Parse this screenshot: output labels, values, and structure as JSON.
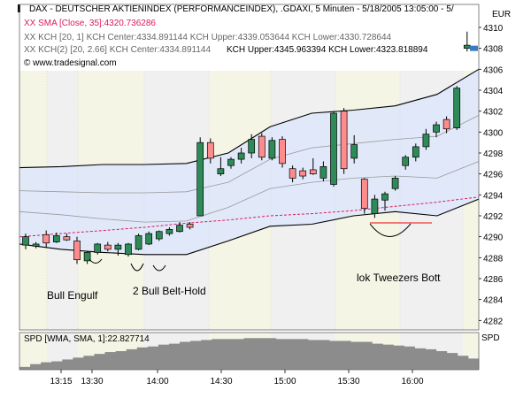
{
  "header": {
    "title": "DAX - DEUTSCHER AKTIENINDEX (PERFORMANCEINDEX), .GDAXI, 5 Minuten - 5/18/2005 13:05:00 - 5/",
    "currency": "EUR",
    "sma_label": "XX SMA [Close, 35]:4320.736286",
    "kch1_label": "XX KCH [20, 1] KCH Center:4334.891144 KCH Upper:4339.053644 KCH Lower:4330.728644",
    "kch2_label_part1": "XX KCH(2) [20, 2.66] KCH Center:4334.891144",
    "kch2_label_part2": "KCH Upper:4345.963394 KCH Lower:4323.818894",
    "copyright": "© www.tradesignal.com"
  },
  "annotations": {
    "bull_engulf": "Bull Engulf",
    "belt_hold": "2 Bull Belt-Hold",
    "tweezers": "lok Tweezers Bott"
  },
  "indicator": {
    "label": "SPD [WMA, SMA, 1]:22.827714",
    "axis_label": "SPD"
  },
  "colors": {
    "bull": "#2e8b57",
    "bear": "#ff8c8c",
    "sma": "#dd1a5a",
    "channel": "#000000",
    "band_fill": "#dde6fb",
    "volume": "#8c8c8c"
  },
  "chart_data": {
    "type": "candlestick",
    "y_ticks": [
      4282,
      4284,
      4286,
      4288,
      4290,
      4292,
      4294,
      4296,
      4298,
      4300,
      4302,
      4304,
      4306,
      4308,
      4310
    ],
    "ylim": [
      4281,
      4311
    ],
    "x_tick_labels": [
      "13:15",
      "13:30",
      "14:00",
      "14:30",
      "15:00",
      "15:30",
      "16:00"
    ],
    "current_price": 4308,
    "candles": [
      {
        "o": 4289.2,
        "h": 4290.3,
        "l": 4288.8,
        "c": 4290.0
      },
      {
        "o": 4289.1,
        "h": 4289.5,
        "l": 4288.9,
        "c": 4289.3
      },
      {
        "o": 4290.2,
        "h": 4290.6,
        "l": 4289.0,
        "c": 4289.4
      },
      {
        "o": 4289.5,
        "h": 4290.4,
        "l": 4289.4,
        "c": 4290.1
      },
      {
        "o": 4290.0,
        "h": 4290.3,
        "l": 4289.6,
        "c": 4289.7
      },
      {
        "o": 4289.6,
        "h": 4290.0,
        "l": 4287.4,
        "c": 4287.8
      },
      {
        "o": 4287.7,
        "h": 4288.6,
        "l": 4287.4,
        "c": 4288.5
      },
      {
        "o": 4288.5,
        "h": 4289.4,
        "l": 4288.3,
        "c": 4289.3
      },
      {
        "o": 4289.2,
        "h": 4289.5,
        "l": 4288.6,
        "c": 4288.8
      },
      {
        "o": 4288.8,
        "h": 4289.4,
        "l": 4288.2,
        "c": 4289.2
      },
      {
        "o": 4288.3,
        "h": 4289.4,
        "l": 4288.1,
        "c": 4289.3
      },
      {
        "o": 4288.8,
        "h": 4290.3,
        "l": 4288.7,
        "c": 4290.1
      },
      {
        "o": 4289.3,
        "h": 4290.5,
        "l": 4289.2,
        "c": 4290.3
      },
      {
        "o": 4289.8,
        "h": 4290.6,
        "l": 4289.6,
        "c": 4290.5
      },
      {
        "o": 4290.3,
        "h": 4290.9,
        "l": 4290.1,
        "c": 4290.7
      },
      {
        "o": 4290.5,
        "h": 4291.4,
        "l": 4290.4,
        "c": 4291.1
      },
      {
        "o": 4291.2,
        "h": 4291.4,
        "l": 4290.7,
        "c": 4290.9
      },
      {
        "o": 4292.0,
        "h": 4299.5,
        "l": 4292.0,
        "c": 4299.0
      },
      {
        "o": 4299.0,
        "h": 4299.4,
        "l": 4297.0,
        "c": 4297.5
      },
      {
        "o": 4296.0,
        "h": 4297.6,
        "l": 4295.8,
        "c": 4296.5
      },
      {
        "o": 4296.8,
        "h": 4297.6,
        "l": 4296.5,
        "c": 4297.4
      },
      {
        "o": 4297.4,
        "h": 4298.5,
        "l": 4297.0,
        "c": 4298.0
      },
      {
        "o": 4298.0,
        "h": 4299.8,
        "l": 4297.5,
        "c": 4299.3
      },
      {
        "o": 4299.6,
        "h": 4299.9,
        "l": 4297.3,
        "c": 4297.6
      },
      {
        "o": 4297.5,
        "h": 4299.5,
        "l": 4297.3,
        "c": 4299.2
      },
      {
        "o": 4299.3,
        "h": 4299.6,
        "l": 4296.6,
        "c": 4297.0
      },
      {
        "o": 4296.5,
        "h": 4296.8,
        "l": 4295.2,
        "c": 4295.6
      },
      {
        "o": 4296.3,
        "h": 4296.6,
        "l": 4295.5,
        "c": 4295.8
      },
      {
        "o": 4296.4,
        "h": 4297.5,
        "l": 4295.9,
        "c": 4296.0
      },
      {
        "o": 4295.6,
        "h": 4297.2,
        "l": 4295.3,
        "c": 4296.7
      },
      {
        "o": 4295.0,
        "h": 4302.0,
        "l": 4294.8,
        "c": 4301.8
      },
      {
        "o": 4302.0,
        "h": 4302.3,
        "l": 4296.0,
        "c": 4296.5
      },
      {
        "o": 4297.5,
        "h": 4299.7,
        "l": 4297.0,
        "c": 4298.8
      },
      {
        "o": 4295.5,
        "h": 4295.6,
        "l": 4292.2,
        "c": 4292.7
      },
      {
        "o": 4292.2,
        "h": 4294.0,
        "l": 4291.8,
        "c": 4293.6
      },
      {
        "o": 4293.5,
        "h": 4294.3,
        "l": 4292.5,
        "c": 4294.1
      },
      {
        "o": 4294.6,
        "h": 4295.8,
        "l": 4294.4,
        "c": 4295.6
      },
      {
        "o": 4296.8,
        "h": 4297.8,
        "l": 4296.4,
        "c": 4297.6
      },
      {
        "o": 4297.6,
        "h": 4298.9,
        "l": 4297.2,
        "c": 4298.6
      },
      {
        "o": 4298.6,
        "h": 4300.3,
        "l": 4298.3,
        "c": 4299.8
      },
      {
        "o": 4300.0,
        "h": 4301.0,
        "l": 4299.5,
        "c": 4300.7
      },
      {
        "o": 4301.2,
        "h": 4301.5,
        "l": 4299.9,
        "c": 4300.3
      },
      {
        "o": 4300.4,
        "h": 4304.4,
        "l": 4300.2,
        "c": 4304.2
      },
      {
        "o": 4308.0,
        "h": 4309.6,
        "l": 4307.7,
        "c": 4308.3
      }
    ],
    "sma": [
      4290.0,
      4290.3,
      4290.6,
      4290.9,
      4291.3,
      4291.6,
      4292.0,
      4292.2,
      4292.5,
      4292.9,
      4293.3,
      4293.8
    ],
    "channel_upper": [
      4296.6,
      4296.7,
      4296.9,
      4296.9,
      4297.0,
      4298.0,
      4300.5,
      4301.8,
      4302.1,
      4302.5,
      4303.6,
      4306.0
    ],
    "channel_lower": [
      4289.3,
      4288.8,
      4288.5,
      4288.3,
      4288.3,
      4289.6,
      4291.0,
      4291.2,
      4292.0,
      4292.4,
      4292.0,
      4293.6
    ],
    "inner_upper": [
      4294.4,
      4294.3,
      4294.2,
      4294.2,
      4294.3,
      4295.2,
      4297.4,
      4298.5,
      4298.9,
      4299.3,
      4299.6,
      4301.6
    ],
    "inner_lower": [
      4292.4,
      4292.1,
      4291.7,
      4291.4,
      4291.5,
      4292.8,
      4294.6,
      4295.2,
      4295.6,
      4295.8,
      4295.6,
      4297.2
    ],
    "spd_values": [
      3,
      6,
      8,
      9,
      11,
      13,
      15,
      17,
      19,
      20,
      22,
      24,
      25,
      27,
      28,
      30,
      31,
      32,
      33,
      33,
      33,
      34,
      34,
      34,
      33,
      33,
      33,
      32,
      32,
      31,
      31,
      30,
      30,
      28,
      27,
      26,
      25,
      23,
      22,
      20,
      18,
      15,
      12
    ]
  }
}
